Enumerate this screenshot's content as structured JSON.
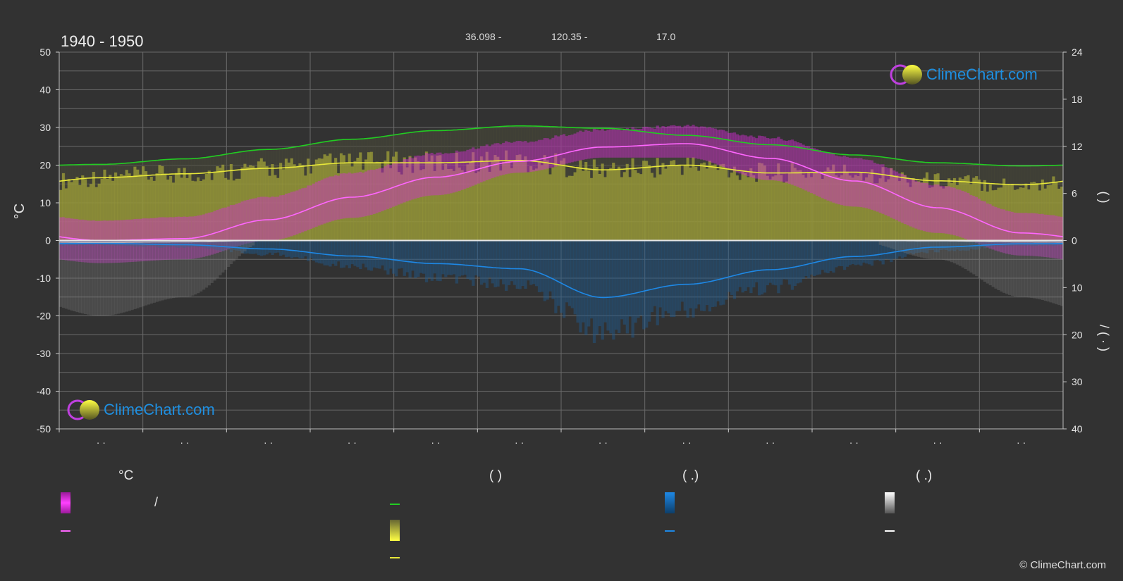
{
  "header": {
    "period": "1940 - 1950",
    "latitude": "36.098 -",
    "longitude": "120.35 -",
    "elevation": "17.0"
  },
  "brand": {
    "logo_text": "ClimeChart.com",
    "copyright": "© ClimeChart.com"
  },
  "colors": {
    "background": "#323232",
    "grid": "#6a6a6a",
    "daylight": "#22cc22",
    "sunshine": "#e8e83a",
    "temp_mean": "#ff66ff",
    "temp_band": "#d42cd4",
    "sunshine_band": "#a7a838",
    "precip": "#1e88e5",
    "zero_line": "#e6e6e6"
  },
  "legend": {
    "col1_head": "°C",
    "col1_row1": "/",
    "col2_head": "(            )",
    "col3_head": "(    .)",
    "col4_head": "(    .)"
  },
  "chart_data": {
    "type": "line",
    "months": 12,
    "x_tick_labels": [
      "· ·",
      "· ·",
      "· ·",
      "· ·",
      "· ·",
      "· ·",
      "· ·",
      "· ·",
      "· ·",
      "· ·",
      "· ·",
      "· ·"
    ],
    "left_axis": {
      "label": "°C",
      "ylim": [
        -50,
        50
      ],
      "ticks": [
        50,
        40,
        30,
        20,
        10,
        0,
        -10,
        -20,
        -30,
        -40,
        -50
      ]
    },
    "right_axis_top": {
      "label": "(    )",
      "ylim": [
        0,
        24
      ],
      "ticks": [
        24,
        18,
        12,
        6,
        0
      ]
    },
    "right_axis_bottom": {
      "label": "/    (  ·  )",
      "ylim": [
        0,
        40
      ],
      "ticks": [
        10,
        20,
        30,
        40
      ]
    },
    "grid": true,
    "series": [
      {
        "key": "daylight",
        "axis": "hours",
        "values": [
          9.7,
          10.4,
          11.6,
          12.9,
          14.0,
          14.6,
          14.3,
          13.4,
          12.2,
          10.9,
          9.9,
          9.5
        ]
      },
      {
        "key": "sunshine",
        "axis": "hours",
        "values": [
          8.0,
          8.5,
          9.2,
          9.9,
          9.9,
          10.2,
          9.0,
          9.6,
          8.6,
          8.7,
          7.6,
          7.1
        ]
      },
      {
        "key": "temp_mean",
        "axis": "celsius",
        "values": [
          0.0,
          0.5,
          5.5,
          11.5,
          16.8,
          21.0,
          24.8,
          25.7,
          21.8,
          15.8,
          8.7,
          2.0
        ]
      },
      {
        "key": "precip",
        "axis": "mm",
        "values": [
          0.6,
          0.9,
          1.8,
          3.3,
          4.9,
          6.0,
          12.1,
          9.3,
          6.2,
          3.4,
          1.4,
          0.7
        ]
      },
      {
        "key": "snow",
        "axis": "mm",
        "values": [
          0.4,
          0.3,
          0.0,
          0.0,
          0.0,
          0.0,
          0.0,
          0.0,
          0.0,
          0.0,
          0.1,
          0.3
        ]
      }
    ],
    "temp_band_celsius": {
      "low": [
        -6,
        -5,
        0,
        6,
        12,
        18,
        22,
        22,
        16,
        9,
        2,
        -4
      ],
      "high": [
        5,
        6,
        11,
        17,
        22,
        25,
        28,
        29,
        26,
        21,
        14,
        7
      ]
    }
  }
}
